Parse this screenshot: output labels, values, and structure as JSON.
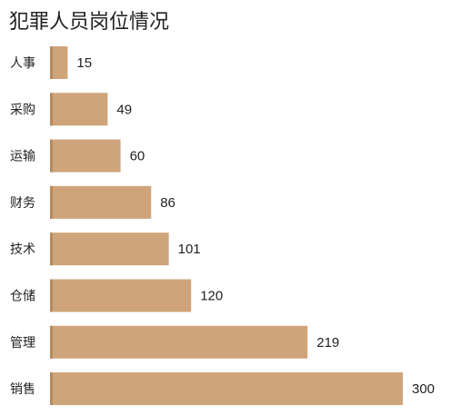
{
  "chart_data": {
    "type": "bar",
    "orientation": "horizontal",
    "title": "犯罪人员岗位情况",
    "categories": [
      "人事",
      "采购",
      "运输",
      "财务",
      "技术",
      "仓储",
      "管理",
      "销售"
    ],
    "values": [
      15,
      49,
      60,
      86,
      101,
      120,
      219,
      300
    ],
    "xlim": [
      0,
      300
    ],
    "grid": false,
    "legend": "none",
    "bar_color": "#cfa47a",
    "bar_edge_color": "#b78a5f"
  }
}
